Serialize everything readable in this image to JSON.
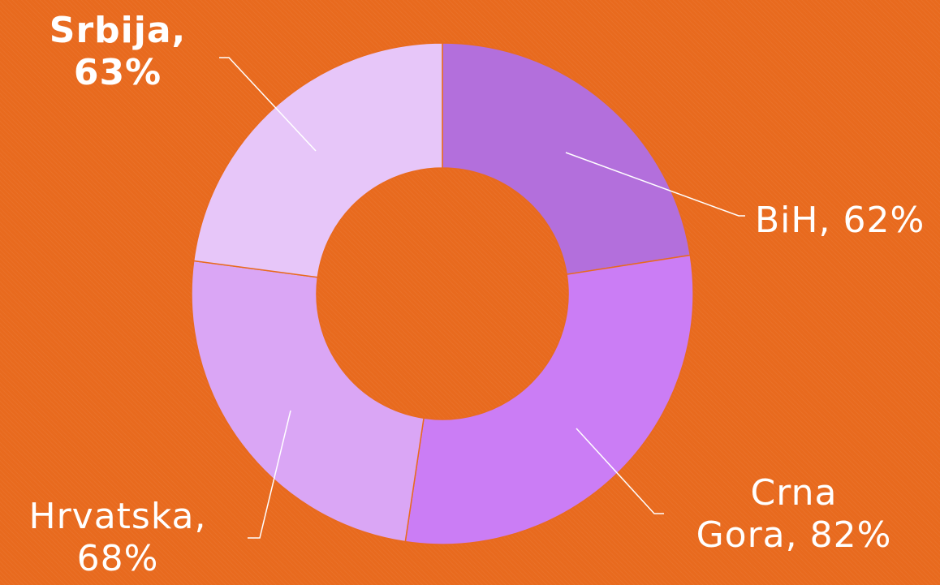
{
  "chart_data": {
    "type": "pie",
    "style": "donut",
    "categories": [
      "BiH",
      "Crna Gora",
      "Hrvatska",
      "Srbija"
    ],
    "values": [
      62,
      82,
      68,
      63
    ],
    "value_suffix": "%",
    "colors": [
      "#B36FDC",
      "#CB7DF5",
      "#DAA6F5",
      "#E7C6F9"
    ],
    "legend": "none",
    "labels": {
      "bih": "BiH, 62%",
      "crna_line1": "Crna",
      "crna_line2": "Gora, 82%",
      "hrv_line1": "Hrvatska,",
      "hrv_line2": "68%",
      "srb_line1": "Srbija,",
      "srb_line2": "63%"
    }
  },
  "theme": {
    "background": "#E86A1E",
    "label_color": "#FFFFFF",
    "leader_color": "#FFFFFF"
  }
}
